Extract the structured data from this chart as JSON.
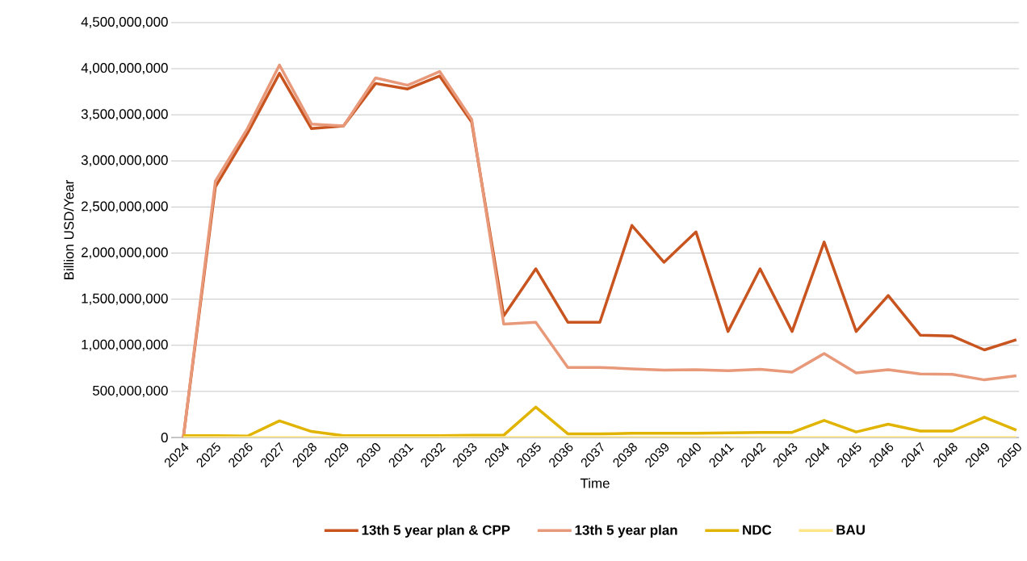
{
  "chart_data": {
    "type": "line",
    "xlabel": "Time",
    "ylabel": "Billion USD/Year",
    "categories": [
      "2024",
      "2025",
      "2026",
      "2027",
      "2028",
      "2029",
      "2030",
      "2031",
      "2032",
      "2033",
      "2034",
      "2035",
      "2036",
      "2037",
      "2038",
      "2039",
      "2040",
      "2041",
      "2042",
      "2043",
      "2044",
      "2045",
      "2046",
      "2047",
      "2048",
      "2049",
      "2050"
    ],
    "ylim": [
      0,
      4500000000
    ],
    "yticks": [
      {
        "value": 0,
        "label": "0"
      },
      {
        "value": 500000000,
        "label": "500,000,000"
      },
      {
        "value": 1000000000,
        "label": "1,000,000,000"
      },
      {
        "value": 1500000000,
        "label": "1,500,000,000"
      },
      {
        "value": 2000000000,
        "label": "2,000,000,000"
      },
      {
        "value": 2500000000,
        "label": "2,500,000,000"
      },
      {
        "value": 3000000000,
        "label": "3,000,000,000"
      },
      {
        "value": 3500000000,
        "label": "3,500,000,000"
      },
      {
        "value": 4000000000,
        "label": "4,000,000,000"
      },
      {
        "value": 4500000000,
        "label": "4,500,000,000"
      }
    ],
    "grid": "y",
    "legend": "bottom",
    "marker": "none",
    "line_style": "solid",
    "series": [
      {
        "name": "13th 5 year plan & CPP",
        "color": "#c8541f",
        "values": [
          0,
          2720000000,
          3300000000,
          3950000000,
          3350000000,
          3380000000,
          3840000000,
          3780000000,
          3920000000,
          3420000000,
          1320000000,
          1830000000,
          1250000000,
          1250000000,
          2300000000,
          1900000000,
          2230000000,
          1150000000,
          1830000000,
          1150000000,
          2120000000,
          1150000000,
          1540000000,
          1110000000,
          1100000000,
          950000000,
          1060000000
        ]
      },
      {
        "name": "13th 5 year plan",
        "color": "#e8997a",
        "values": [
          0,
          2780000000,
          3350000000,
          4040000000,
          3400000000,
          3380000000,
          3900000000,
          3820000000,
          3970000000,
          3450000000,
          1230000000,
          1250000000,
          760000000,
          760000000,
          745000000,
          730000000,
          735000000,
          725000000,
          740000000,
          710000000,
          910000000,
          700000000,
          735000000,
          690000000,
          685000000,
          625000000,
          670000000
        ]
      },
      {
        "name": "NDC",
        "color": "#e0b400",
        "values": [
          20000000,
          20000000,
          15000000,
          180000000,
          65000000,
          20000000,
          20000000,
          20000000,
          20000000,
          25000000,
          25000000,
          330000000,
          40000000,
          40000000,
          45000000,
          45000000,
          45000000,
          50000000,
          55000000,
          55000000,
          185000000,
          60000000,
          145000000,
          70000000,
          70000000,
          220000000,
          80000000
        ]
      },
      {
        "name": "BAU",
        "color": "#fde58a",
        "values": [
          0,
          0,
          0,
          0,
          0,
          0,
          0,
          0,
          0,
          0,
          0,
          0,
          0,
          0,
          0,
          0,
          0,
          0,
          0,
          0,
          0,
          0,
          0,
          0,
          0,
          0,
          0
        ]
      }
    ]
  }
}
